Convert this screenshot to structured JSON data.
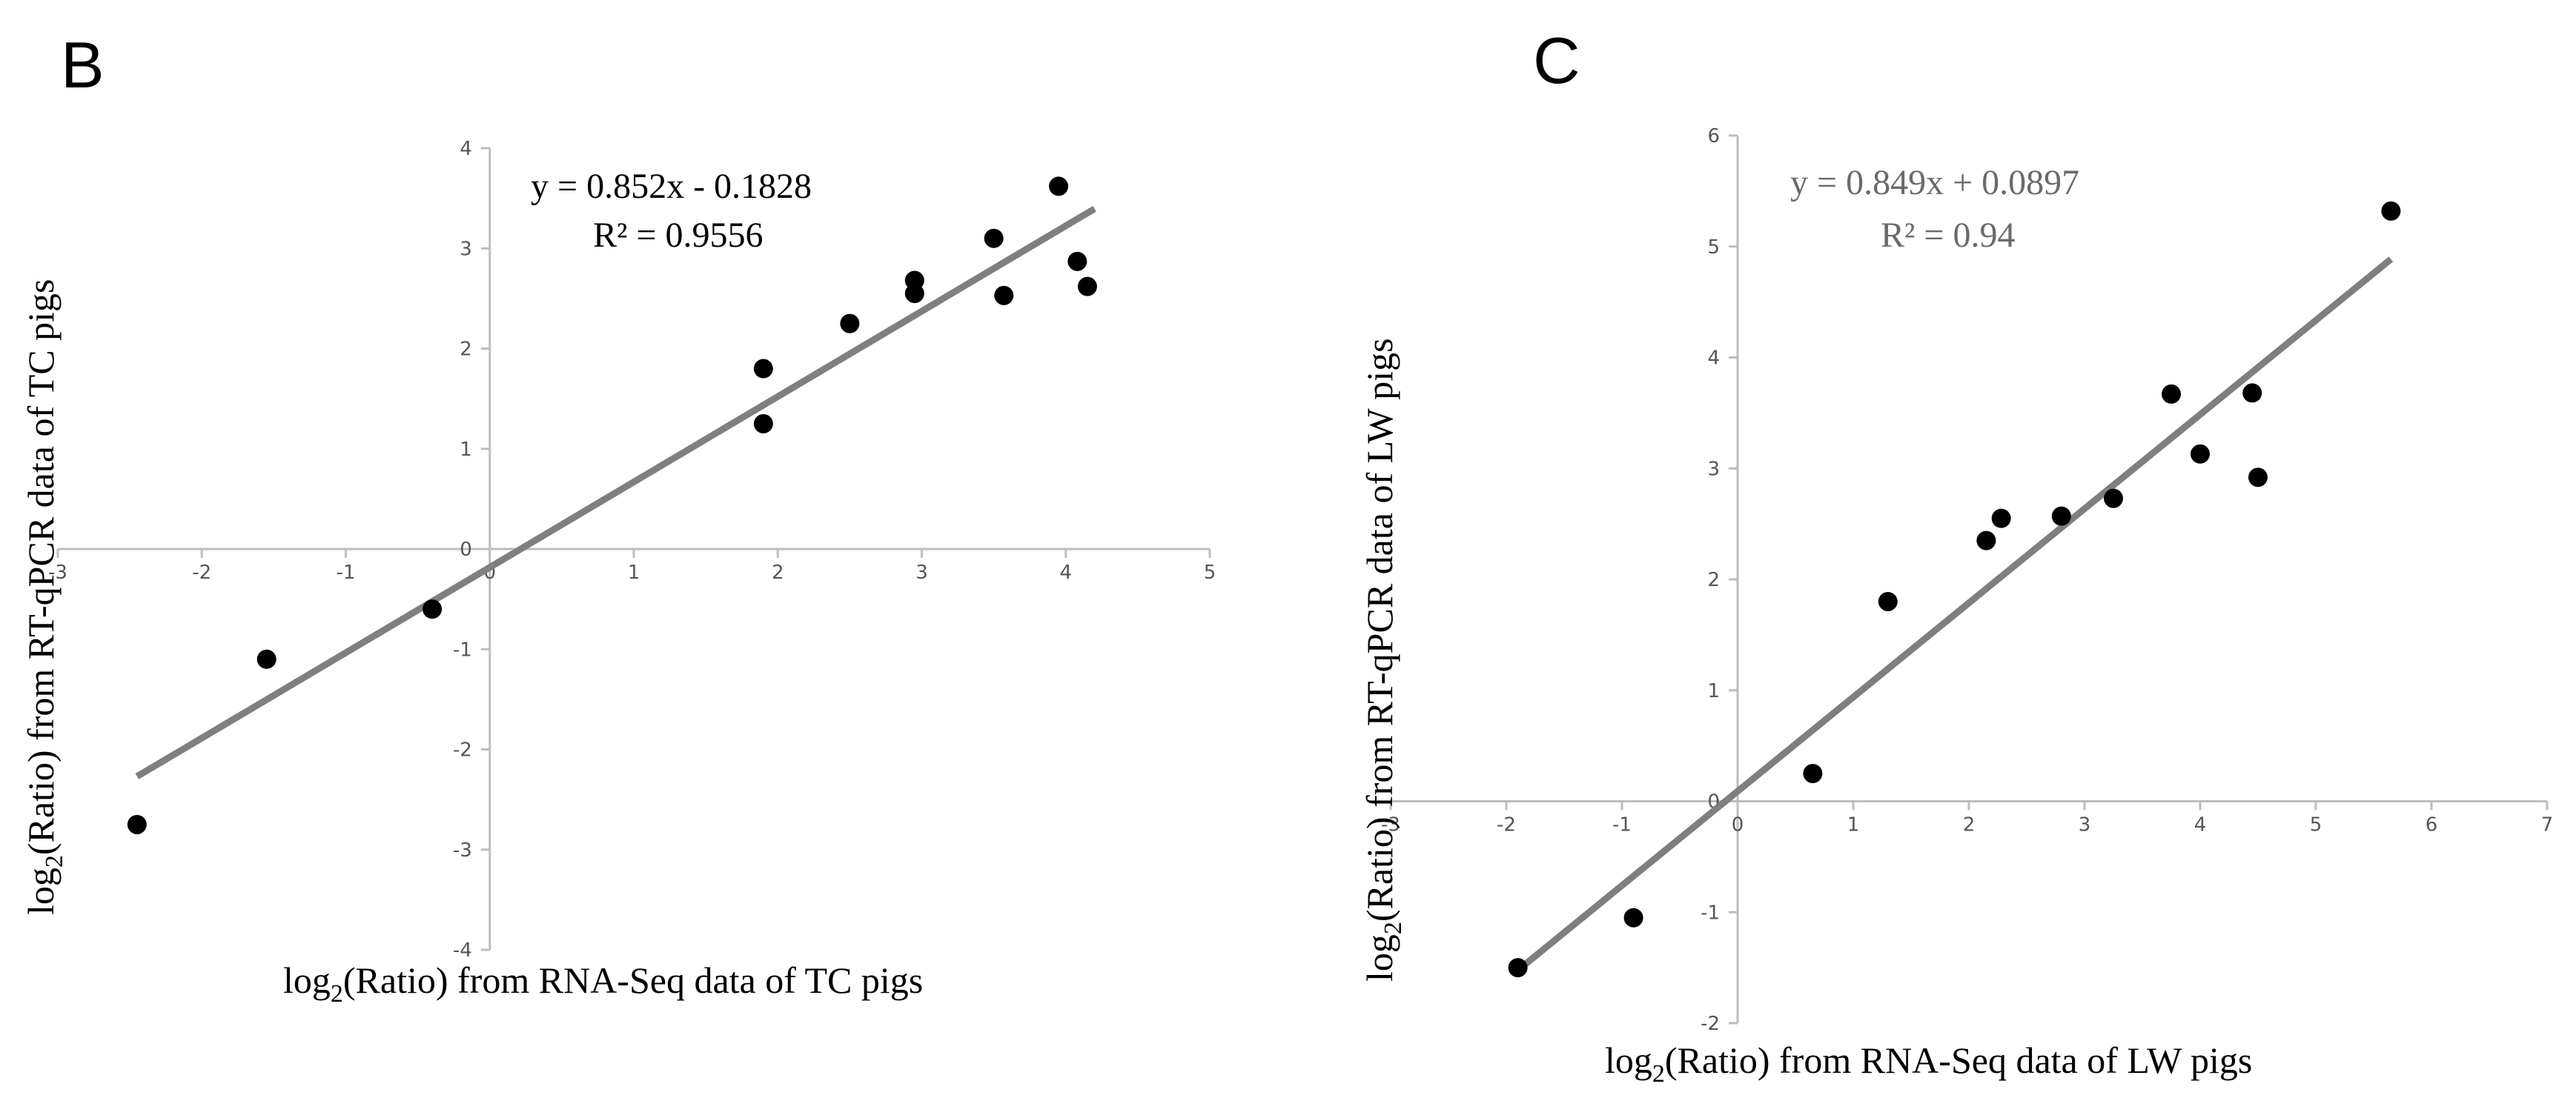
{
  "chart_data": [
    {
      "type": "scatter",
      "panel_label": "B",
      "xlim": [
        -3,
        5
      ],
      "ylim": [
        -4,
        4
      ],
      "x_ticks": [
        -3,
        -2,
        -1,
        0,
        1,
        2,
        3,
        4,
        5
      ],
      "y_ticks": [
        -4,
        -3,
        -2,
        -1,
        0,
        1,
        2,
        3,
        4
      ],
      "xlabel": {
        "pre": "log",
        "sub": "2",
        "post": "(Ratio) from RNA-Seq data of TC pigs"
      },
      "ylabel": {
        "pre": "log",
        "sub": "2",
        "post": "(Ratio) from  RT-qPCR data of TC pigs"
      },
      "equation": "y = 0.852x - 0.1828",
      "r_squared": "R² = 0.9556",
      "trendline": {
        "slope": 0.852,
        "intercept": -0.1828,
        "x_range": [
          -2.45,
          4.2
        ]
      },
      "points": [
        [
          -2.45,
          -2.75
        ],
        [
          -1.55,
          -1.1
        ],
        [
          -0.4,
          -0.6
        ],
        [
          1.9,
          1.8
        ],
        [
          1.9,
          1.25
        ],
        [
          2.5,
          2.25
        ],
        [
          2.95,
          2.68
        ],
        [
          2.95,
          2.55
        ],
        [
          3.5,
          3.1
        ],
        [
          3.57,
          2.53
        ],
        [
          3.95,
          3.62
        ],
        [
          4.08,
          2.87
        ],
        [
          4.15,
          2.62
        ]
      ]
    },
    {
      "type": "scatter",
      "panel_label": "C",
      "xlim": [
        -3,
        7
      ],
      "ylim": [
        -2,
        6
      ],
      "x_ticks": [
        -3,
        -2,
        -1,
        0,
        1,
        2,
        3,
        4,
        5,
        6,
        7
      ],
      "y_ticks": [
        -2,
        -1,
        0,
        1,
        2,
        3,
        4,
        5,
        6
      ],
      "xlabel": {
        "pre": "log",
        "sub": "2",
        "post": "(Ratio) from RNA-Seq data of LW pigs"
      },
      "ylabel": {
        "pre": "log",
        "sub": "2",
        "post": "(Ratio) from  RT-qPCR data of LW pigs"
      },
      "equation": "y = 0.849x + 0.0897",
      "r_squared": "R² = 0.94",
      "trendline": {
        "slope": 0.849,
        "intercept": 0.0897,
        "x_range": [
          -1.9,
          5.65
        ]
      },
      "points": [
        [
          -1.9,
          -1.5
        ],
        [
          -0.9,
          -1.05
        ],
        [
          0.65,
          0.25
        ],
        [
          1.3,
          1.8
        ],
        [
          2.15,
          2.35
        ],
        [
          2.28,
          2.55
        ],
        [
          2.8,
          2.57
        ],
        [
          3.25,
          2.73
        ],
        [
          3.75,
          3.67
        ],
        [
          4.0,
          3.13
        ],
        [
          4.45,
          3.68
        ],
        [
          4.5,
          2.92
        ],
        [
          5.65,
          5.32
        ]
      ]
    }
  ]
}
